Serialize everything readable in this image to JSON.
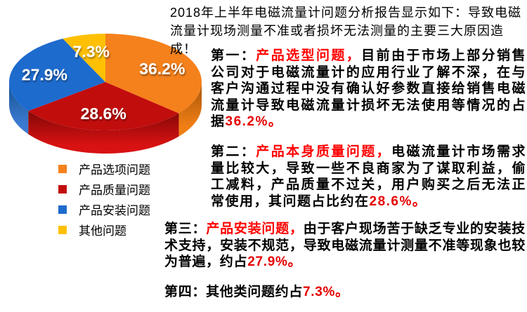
{
  "header": {
    "line1": "2018年上半年电磁流量计问题分析报告显示如下：导致电磁",
    "line2": "流量计现场测量不准或者损坏无法测量的主要三大原因造成！"
  },
  "chart_data": {
    "type": "pie",
    "style": "3d",
    "start_angle_deg": 0,
    "direction": "clockwise",
    "legend_position": "below-left",
    "value_label_color": "#ffffff",
    "slices": [
      {
        "label": "产品选项问题",
        "value": 36.2,
        "display": "36.2%",
        "color": "#f5811c",
        "wall_top": "#a3540a",
        "wall_bottom": "#f07e15"
      },
      {
        "label": "产品质量问题",
        "value": 28.6,
        "display": "28.6%",
        "color": "#c20d0d",
        "wall_top": "#820707",
        "wall_bottom": "#d81212"
      },
      {
        "label": "产品安装问题",
        "value": 27.9,
        "display": "27.9%",
        "color": "#1e6bce",
        "wall_top": "#14508f",
        "wall_bottom": "#3b7ad2"
      },
      {
        "label": "其他问题",
        "value": 7.3,
        "display": "7.3%",
        "color": "#ffc004",
        "wall_top": "#b38600",
        "wall_bottom": "#ffc004"
      }
    ]
  },
  "paragraphs": [
    {
      "segments": [
        {
          "t": "第一：",
          "c": "#000000"
        },
        {
          "t": "产品选型问题，",
          "c": "#ff0000"
        },
        {
          "t": "目前由于市场上部分销售公司对于电磁流量计的应用行业了解不深，在与客户沟通过程中没有确认好参数直接给销售电磁流量计导致电磁流量计损坏无法使用等情况的占据",
          "c": "#000000"
        },
        {
          "t": "36.2%。",
          "c": "#e60000"
        }
      ]
    },
    {
      "segments": [
        {
          "t": "第二：",
          "c": "#000000"
        },
        {
          "t": "产品本身质量问题，",
          "c": "#ff0000"
        },
        {
          "t": "电磁流量计市场需求量比较大，导致一些不良商家为了谋取利益，偷工减料，产品质量不过关，用户购买之后无法正常使用，其问题占比约在",
          "c": "#000000"
        },
        {
          "t": "28.6%。",
          "c": "#e60000"
        }
      ]
    },
    {
      "segments": [
        {
          "t": "第三：",
          "c": "#000000"
        },
        {
          "t": "产品安装问题，",
          "c": "#ff0000"
        },
        {
          "t": "由于客户现场苦于缺乏专业的安装技术支持，安装不规范，导致电磁流量计测量不准等现象也较为普遍，约占",
          "c": "#000000"
        },
        {
          "t": "27.9%。",
          "c": "#e60000"
        }
      ]
    },
    {
      "segments": [
        {
          "t": "第四：其他类问题约占",
          "c": "#000000"
        },
        {
          "t": "7.3%。",
          "c": "#e60000"
        }
      ]
    }
  ]
}
